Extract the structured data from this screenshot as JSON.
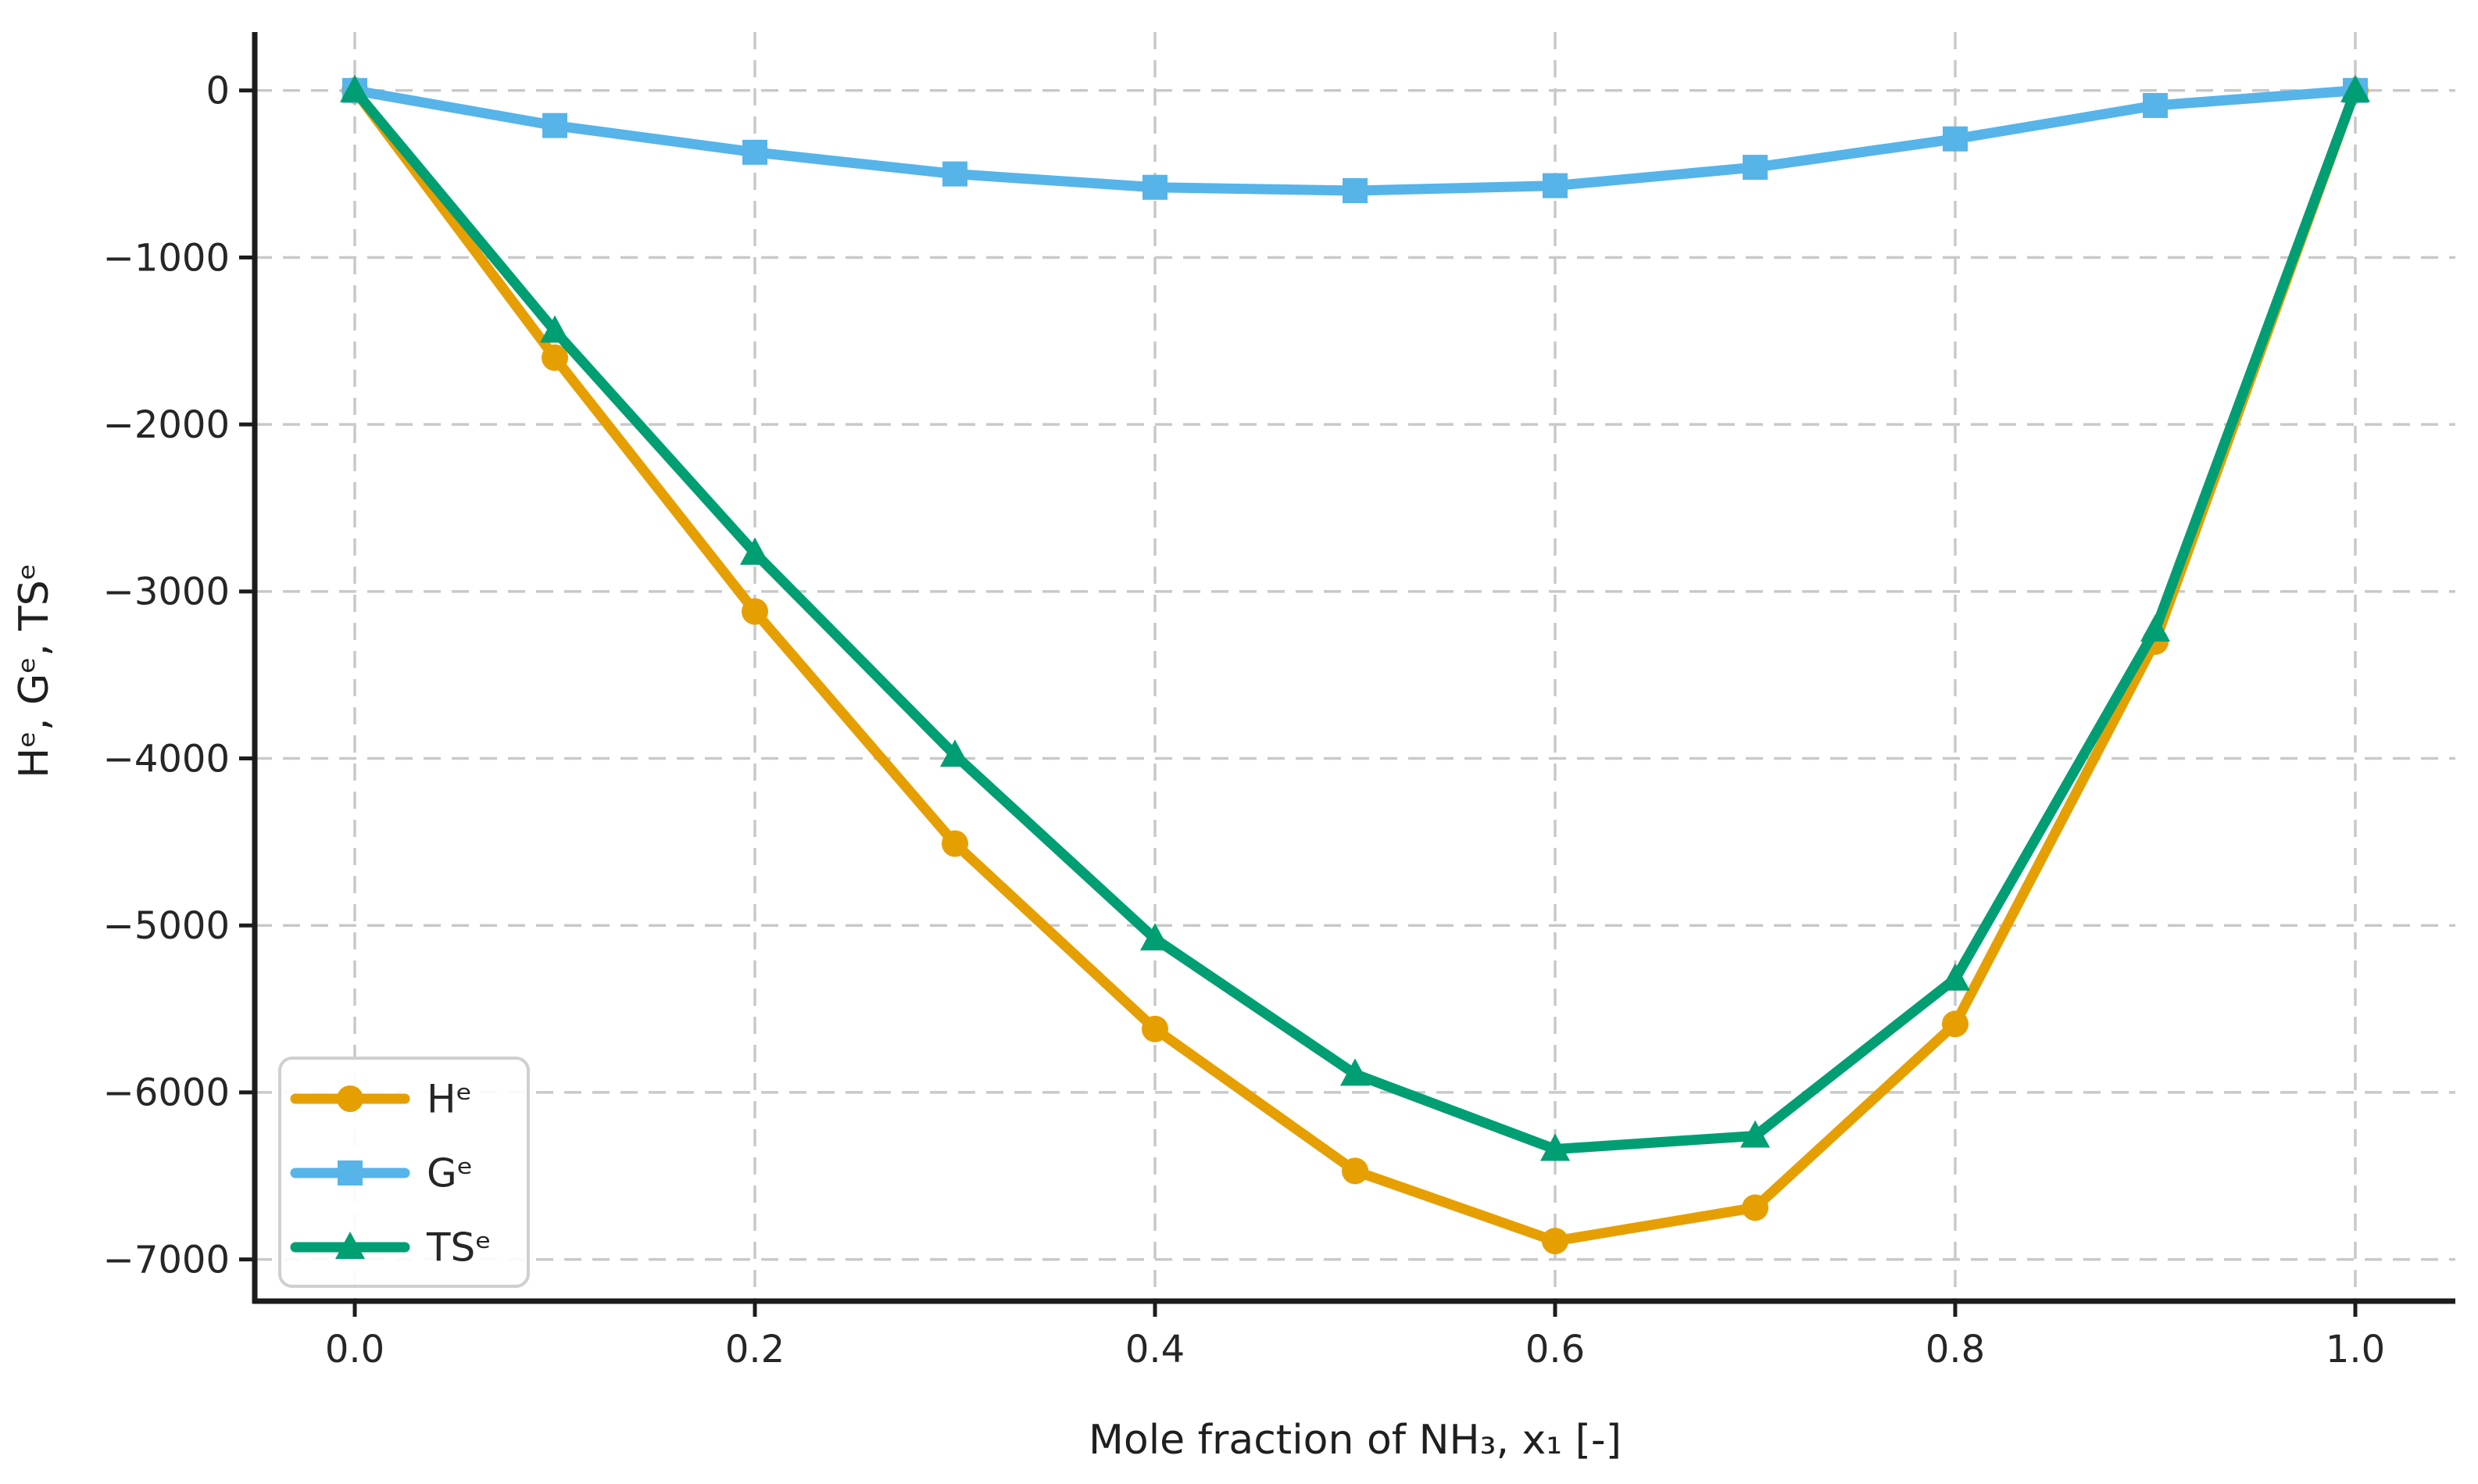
{
  "figure": {
    "background": "#ffffff",
    "axis_color": "#1c1c1c",
    "tick_label_color": "#262626",
    "grid_color": "#c9c9c9",
    "legend_border_color": "#cfcfcf",
    "legend_background": "#ffffff"
  },
  "chart_data": {
    "type": "line",
    "title": "",
    "xlabel": "Mole fraction of NH₃, x₁ [-]",
    "ylabel": "Hᵉ, Gᵉ, TSᵉ",
    "x": [
      0.0,
      0.1,
      0.2,
      0.3,
      0.4,
      0.5,
      0.6,
      0.7,
      0.8,
      0.9,
      1.0
    ],
    "series": [
      {
        "name": "He",
        "label": "Hᵉ",
        "color": "#E69F00",
        "marker": "circle",
        "values": [
          0,
          -1600,
          -3120,
          -4510,
          -5620,
          -6470,
          -6890,
          -6690,
          -5590,
          -3300,
          0
        ]
      },
      {
        "name": "Ge",
        "label": "Gᵉ",
        "color": "#56B4E9",
        "marker": "square",
        "values": [
          0,
          -210,
          -370,
          -500,
          -580,
          -600,
          -570,
          -460,
          -290,
          -90,
          0
        ]
      },
      {
        "name": "TSe",
        "label": "TSᵉ",
        "color": "#009E73",
        "marker": "triangle-up",
        "values": [
          0,
          -1440,
          -2770,
          -3980,
          -5080,
          -5890,
          -6340,
          -6260,
          -5320,
          -3230,
          0
        ]
      }
    ],
    "x_ticks": {
      "values": [
        0.0,
        0.2,
        0.4,
        0.6,
        0.8,
        1.0
      ],
      "labels": [
        "0.0",
        "0.2",
        "0.4",
        "0.6",
        "0.8",
        "1.0"
      ]
    },
    "y_ticks": {
      "values": [
        0,
        -1000,
        -2000,
        -3000,
        -4000,
        -5000,
        -6000,
        -7000
      ],
      "labels": [
        "0",
        "−1000",
        "−2000",
        "−3000",
        "−4000",
        "−5000",
        "−6000",
        "−7000"
      ]
    },
    "xlim": [
      -0.05,
      1.05
    ],
    "ylim": [
      -7250,
      350
    ],
    "grid": true,
    "legend_position": "lower left"
  }
}
